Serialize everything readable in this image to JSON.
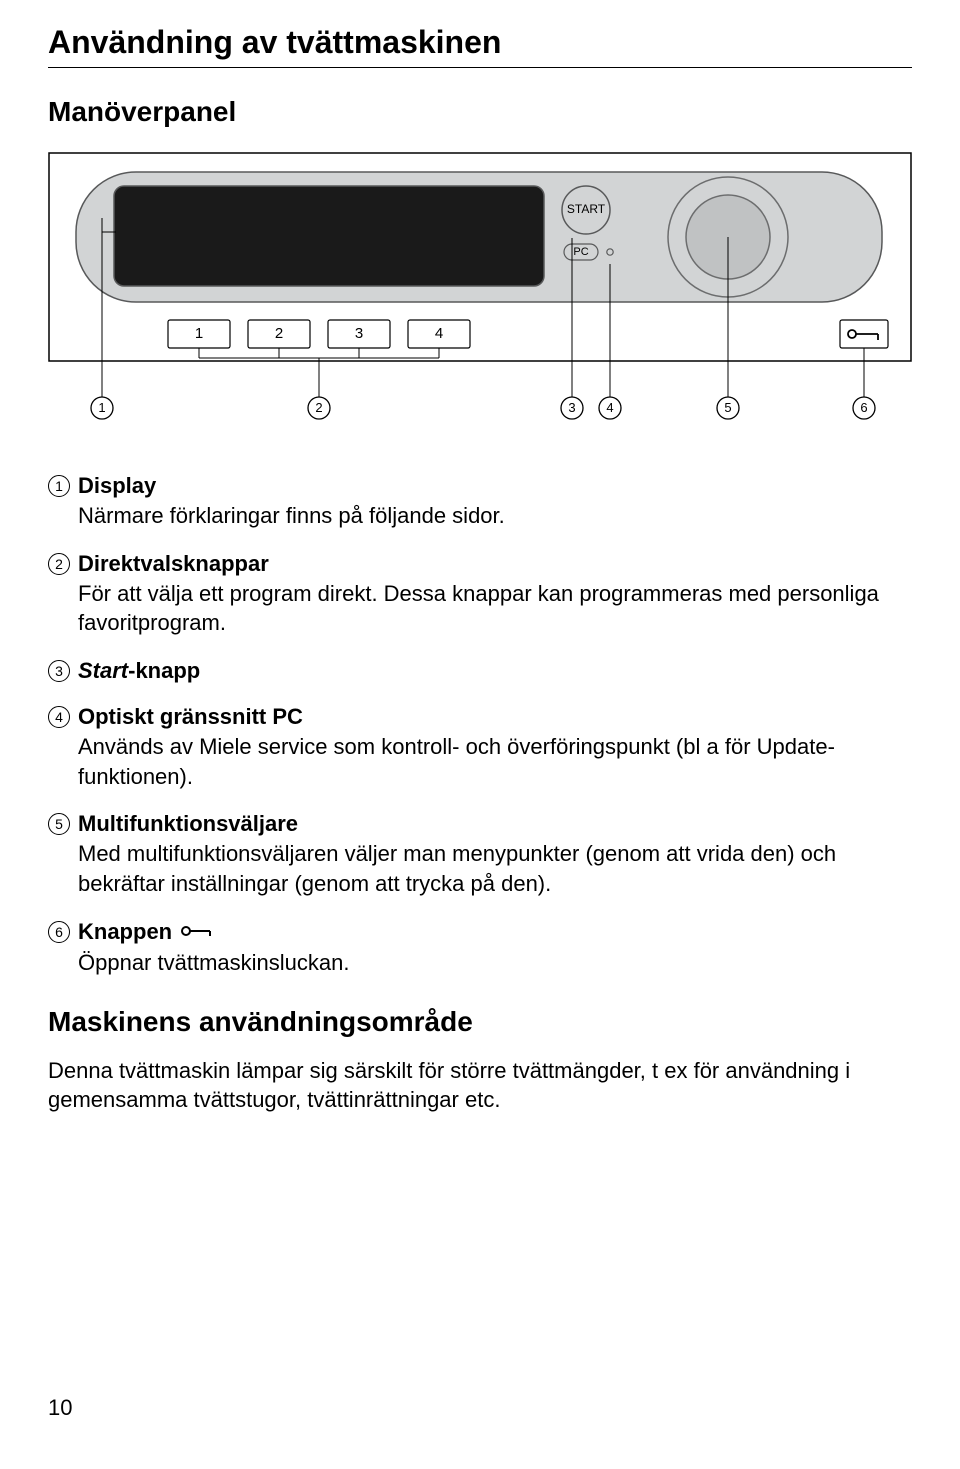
{
  "page": {
    "title": "Användning av tvättmaskinen",
    "subtitle": "Manöverpanel",
    "number": "10"
  },
  "diagram": {
    "outer_border": "#000000",
    "panel_fill": "#d2d4d5",
    "panel_stroke": "#58595a",
    "display_fill": "#1a1a1a",
    "display_stroke": "#58595a",
    "dial_outer_fill": "#d2d4d5",
    "dial_outer_stroke": "#6c6d6e",
    "dial_inner_fill": "#c0c2c3",
    "start_label": "START",
    "pc_label": "PC",
    "buttons": [
      "1",
      "2",
      "3",
      "4"
    ],
    "callouts": [
      "1",
      "2",
      "3",
      "4",
      "5",
      "6"
    ],
    "leader_line": "#000000",
    "font": "Arial"
  },
  "items": [
    {
      "num": "1",
      "title": "Display",
      "body": "Närmare förklaringar finns på följande sidor."
    },
    {
      "num": "2",
      "title": "Direktvalsknappar",
      "body": "För att välja ett program direkt. Dessa knappar kan programmeras med personliga favoritprogram."
    },
    {
      "num": "3",
      "title_html": "start_knapp",
      "title_italic": "Start",
      "title_rest": "-knapp",
      "body": ""
    },
    {
      "num": "4",
      "title": "Optiskt gränssnitt PC",
      "body": "Används av Miele service som kontroll- och överföringspunkt (bl a för Update-funktionen)."
    },
    {
      "num": "5",
      "title": "Multifunktionsväljare",
      "body": "Med multifunktionsväljaren väljer man menypunkter (genom att vrida den) och bekräftar inställningar (genom att trycka på den)."
    },
    {
      "num": "6",
      "title": "Knappen",
      "title_has_key_icon": true,
      "body": "Öppnar tvättmaskinsluckan."
    }
  ],
  "section2": {
    "title": "Maskinens användningsområde",
    "para": "Denna tvättmaskin lämpar sig särskilt för större tvättmängder, t ex för användning i gemensamma tvättstugor, tvättinrättningar etc."
  }
}
